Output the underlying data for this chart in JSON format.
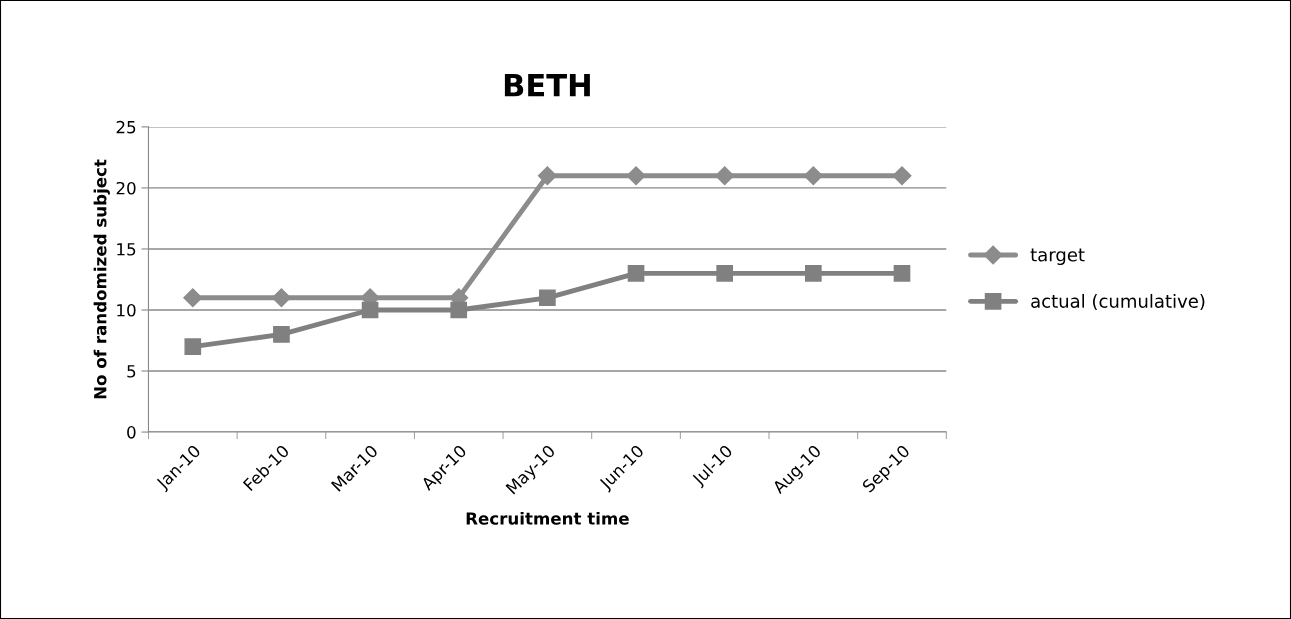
{
  "chart_data": {
    "type": "line",
    "title": "BETH",
    "xlabel": "Recruitment time",
    "ylabel": "No of randomized subject",
    "categories": [
      "Jan-10",
      "Feb-10",
      "Mar-10",
      "Apr-10",
      "May-10",
      "Jun-10",
      "Jul-10",
      "Aug-10",
      "Sep-10"
    ],
    "series": [
      {
        "name": "target",
        "color": "#8c8c8c",
        "marker": "diamond",
        "values": [
          11,
          11,
          11,
          11,
          21,
          21,
          21,
          21,
          21
        ]
      },
      {
        "name": "actual (cumulative)",
        "color": "#808080",
        "marker": "square",
        "values": [
          7,
          8,
          10,
          10,
          11,
          13,
          13,
          13,
          13
        ]
      }
    ],
    "ylim": [
      0,
      25
    ],
    "yticks": [
      0,
      5,
      10,
      15,
      20,
      25
    ],
    "grid": "y",
    "legend": "right",
    "line_style": "solid"
  }
}
